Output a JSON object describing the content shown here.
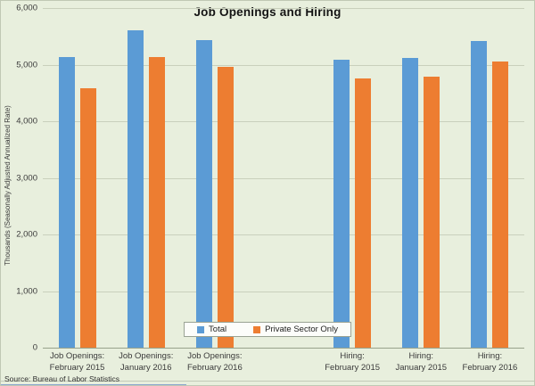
{
  "chart_data": {
    "type": "bar",
    "title": "Job Openings and Hiring",
    "ylabel": "Thousands (Seasonally Adjusted  Annualized Rate)",
    "source": "Source: Bureau of Labor Statistics",
    "ylim": [
      0,
      6000
    ],
    "ytick_step": 1000,
    "grid": true,
    "legend_position": "bottom-center",
    "background_color": "#e8efdd",
    "categories": [
      [
        "Job Openings:",
        "February 2015"
      ],
      [
        "Job Openings:",
        "January 2016"
      ],
      [
        "Job Openings:",
        "February 2016"
      ],
      [
        "",
        ""
      ],
      [
        "Hiring:",
        "February 2015"
      ],
      [
        "Hiring:",
        "January 2015"
      ],
      [
        "Hiring:",
        "February 2016"
      ]
    ],
    "series": [
      {
        "name": "Total",
        "color": "#5b9bd5",
        "values": [
          5130,
          5600,
          5440,
          null,
          5080,
          5120,
          5410
        ]
      },
      {
        "name": "Private Sector Only",
        "color": "#ed7d31",
        "values": [
          4590,
          5130,
          4960,
          null,
          4750,
          4780,
          5050
        ]
      }
    ]
  }
}
